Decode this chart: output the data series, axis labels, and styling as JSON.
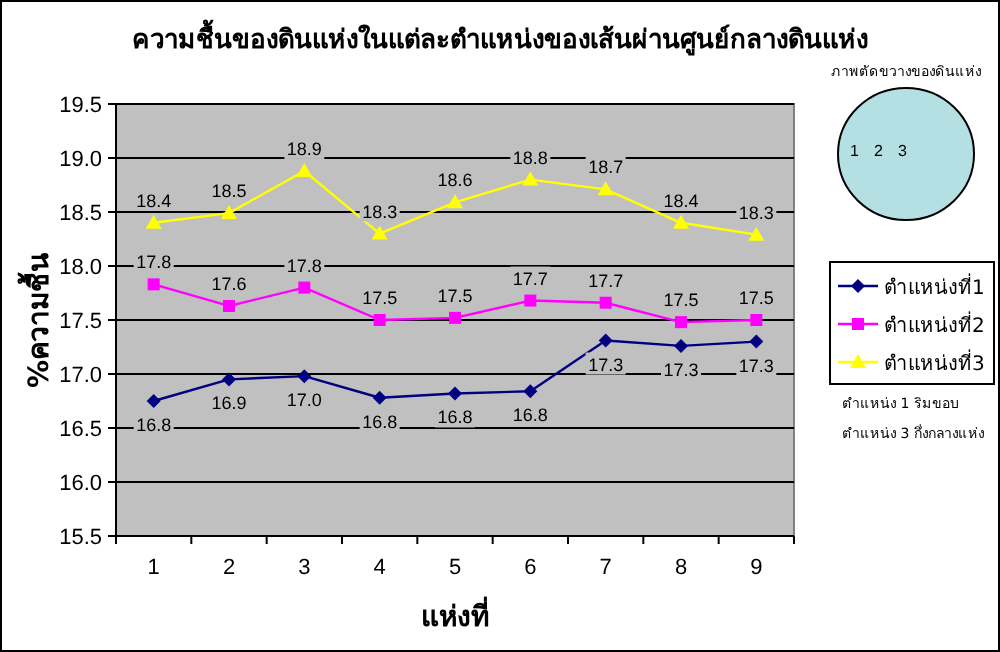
{
  "chart_data": {
    "type": "line",
    "title": "ความชื้นของดินแห่งในแต่ละตำแหน่งของเส้นผ่านศูนย์กลางดินแห่ง",
    "xlabel": "แห่งที่",
    "ylabel": "%ความชื้น",
    "categories": [
      "1",
      "2",
      "3",
      "4",
      "5",
      "6",
      "7",
      "8",
      "9"
    ],
    "series": [
      {
        "name": "ตำแหน่งที่1",
        "color": "#000080",
        "marker": "diamond",
        "values": [
          16.75,
          16.95,
          16.98,
          16.78,
          16.82,
          16.84,
          17.31,
          17.26,
          17.3
        ],
        "value_labels": [
          "16.8",
          "16.9",
          "17.0",
          "16.8",
          "16.8",
          "16.8",
          "17.3",
          "17.3",
          "17.3"
        ]
      },
      {
        "name": "ตำแหน่งที่2",
        "color": "#ff00ff",
        "marker": "square",
        "values": [
          17.83,
          17.63,
          17.8,
          17.5,
          17.52,
          17.68,
          17.66,
          17.48,
          17.5
        ],
        "value_labels": [
          "17.8",
          "17.6",
          "17.8",
          "17.5",
          "17.5",
          "17.7",
          "17.7",
          "17.5",
          "17.5"
        ]
      },
      {
        "name": "ตำแหน่งที่3",
        "color": "#ffff00",
        "marker": "triangle",
        "values": [
          18.4,
          18.49,
          18.88,
          18.3,
          18.59,
          18.8,
          18.71,
          18.4,
          18.29
        ],
        "value_labels": [
          "18.4",
          "18.5",
          "18.9",
          "18.3",
          "18.6",
          "18.8",
          "18.7",
          "18.4",
          "18.3"
        ]
      }
    ],
    "ylim": [
      15.5,
      19.5
    ],
    "yticks": [
      15.5,
      {
        "value": 16,
        "label": "16.0"
      },
      16.5,
      {
        "value": 17,
        "label": "17.0"
      },
      17.5,
      {
        "value": 18,
        "label": "18.0"
      },
      18.5,
      {
        "value": 19,
        "label": "19.0"
      },
      19.5
    ],
    "grid": "y",
    "legend": "right",
    "annotations": [
      "ภาพตัดขวางของดินแห่ง",
      "1",
      "2",
      "3",
      "ตำแหน่ง 1 ริมขอบ",
      "ตำแหน่ง 3 กึ่งกลางแห่ง"
    ]
  }
}
